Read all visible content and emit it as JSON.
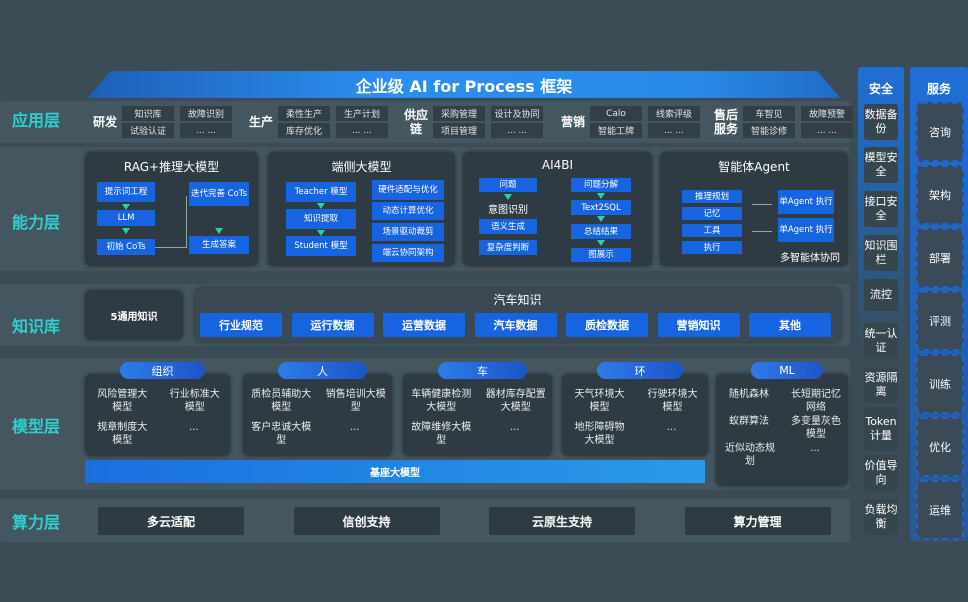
{
  "title": "企业级 AI for Process 框架",
  "layers": {
    "app": "应用层",
    "ability": "能力层",
    "knowledge": "知识库",
    "model": "模型层",
    "compute": "算力层"
  },
  "app_groups": [
    {
      "name": "研发",
      "cells": [
        "知识库",
        "故障识别",
        "试验认证",
        "... ..."
      ]
    },
    {
      "name": "生产",
      "cells": [
        "柔性生产",
        "生产计划",
        "库存优化",
        "... ..."
      ]
    },
    {
      "name": "供应链",
      "cells": [
        "采购管理",
        "设计及协同",
        "项目管理",
        "... ..."
      ]
    },
    {
      "name": "营销",
      "cells": [
        "Calo",
        "线索评级",
        "智能工牌",
        "... ..."
      ]
    },
    {
      "name": "售后服务",
      "cells": [
        "车智见",
        "故障预警",
        "智能诊修",
        "... ..."
      ]
    }
  ],
  "ability": {
    "rag": {
      "title": "RAG+推理大模型",
      "items": [
        "提示词工程",
        "LLM",
        "初始 CoTs",
        "迭代完善 CoTs",
        "生成答案"
      ]
    },
    "edge": {
      "title": "端侧大模型",
      "left": [
        "Teacher 模型",
        "知识提取",
        "Student 模型"
      ],
      "right": [
        "硬件适配与优化",
        "动态计算优化",
        "场景驱动裁剪",
        "端云协同架构"
      ]
    },
    "ai4bi": {
      "title": "AI4BI",
      "left": [
        "问题",
        "意图识别",
        "语义生成",
        "复杂度判断"
      ],
      "right": [
        "问题分解",
        "Text2SQL",
        "总结结果",
        "图展示"
      ]
    },
    "agent": {
      "title": "智能体Agent",
      "left": [
        "推理规划",
        "记忆",
        "工具",
        "执行"
      ],
      "right": [
        "单Agent 执行",
        "单Agent 执行"
      ],
      "caption": "多智能体协同"
    }
  },
  "knowledge": {
    "general": "5通用知识",
    "auto_title": "汽车知识",
    "auto_items": [
      "行业规范",
      "运行数据",
      "运营数据",
      "汽车数据",
      "质检数据",
      "营销知识",
      "其他"
    ]
  },
  "models": [
    {
      "tag": "组织",
      "cells": [
        "风险管理大模型",
        "行业标准大模型",
        "规章制度大模型",
        "..."
      ]
    },
    {
      "tag": "人",
      "cells": [
        "质检员辅助大模型",
        "销售培训大模型",
        "客户忠诚大模型",
        "..."
      ]
    },
    {
      "tag": "车",
      "cells": [
        "车辆健康检测大模型",
        "器材库存配置大模型",
        "故障维修大模型",
        "..."
      ]
    },
    {
      "tag": "环",
      "cells": [
        "天气环境大模型",
        "行驶环境大模型",
        "地形障碍物大模型",
        "..."
      ]
    },
    {
      "tag": "ML",
      "cells": [
        "随机森林",
        "长短期记忆网络",
        "蚁群算法",
        "多变量灰色模型",
        "近似动态规划",
        "..."
      ]
    }
  ],
  "base_model": "基座大模型",
  "compute": [
    "多云适配",
    "信创支持",
    "云原生支持",
    "算力管理"
  ],
  "security": {
    "title": "安全",
    "items": [
      "数据备份",
      "模型安全",
      "接口安全",
      "知识围栏",
      "流控",
      "统一认证",
      "资源隔离",
      "Token计量",
      "价值导向",
      "负载均衡"
    ]
  },
  "service": {
    "title": "服务",
    "items": [
      "咨询",
      "架构",
      "部署",
      "评测",
      "训练",
      "优化",
      "运维"
    ]
  },
  "colors": {
    "background": "#3b4c57",
    "accent_blue": "#1664e0",
    "layer_label": "#2fd0d0",
    "panel": "#2f3b43"
  }
}
